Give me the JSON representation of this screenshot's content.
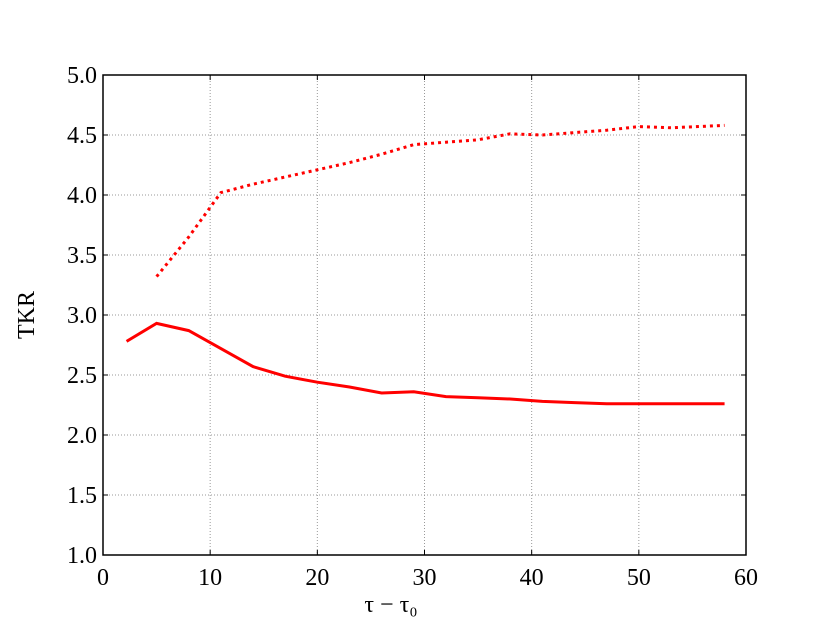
{
  "chart_data": {
    "type": "line",
    "xlabel": "τ − τ₀",
    "ylabel": "TKR",
    "xlim": [
      0,
      60
    ],
    "xticks": [
      0,
      10,
      20,
      30,
      40,
      50,
      60
    ],
    "ylim": [
      1,
      5
    ],
    "yticks": [
      {
        "value": 1,
        "label": "1.0"
      },
      1.5,
      {
        "value": 2,
        "label": "2.0"
      },
      2.5,
      {
        "value": 3,
        "label": "3.0"
      },
      3.5,
      {
        "value": 4,
        "label": "4.0"
      },
      4.5,
      {
        "value": 5,
        "label": "5.0"
      }
    ],
    "grid": true,
    "series": [
      {
        "color": "#ff0000",
        "dash": "solid",
        "x": [
          2.2,
          5,
          8,
          11,
          14,
          17,
          20,
          23,
          26,
          29,
          32,
          35,
          38,
          41,
          44,
          47,
          50,
          53,
          58
        ],
        "values": [
          2.78,
          2.93,
          2.87,
          2.72,
          2.57,
          2.49,
          2.44,
          2.4,
          2.35,
          2.36,
          2.32,
          2.31,
          2.3,
          2.28,
          2.27,
          2.26,
          2.26,
          2.26,
          2.26
        ]
      },
      {
        "color": "#ff0000",
        "dash": "dotted",
        "x": [
          5,
          8,
          11,
          14,
          17,
          20,
          23,
          26,
          29,
          32,
          35,
          38,
          41,
          44,
          47,
          50,
          53,
          58
        ],
        "values": [
          3.32,
          3.65,
          4.02,
          4.09,
          4.15,
          4.21,
          4.27,
          4.34,
          4.42,
          4.44,
          4.46,
          4.51,
          4.5,
          4.52,
          4.54,
          4.57,
          4.56,
          4.58
        ]
      }
    ]
  }
}
